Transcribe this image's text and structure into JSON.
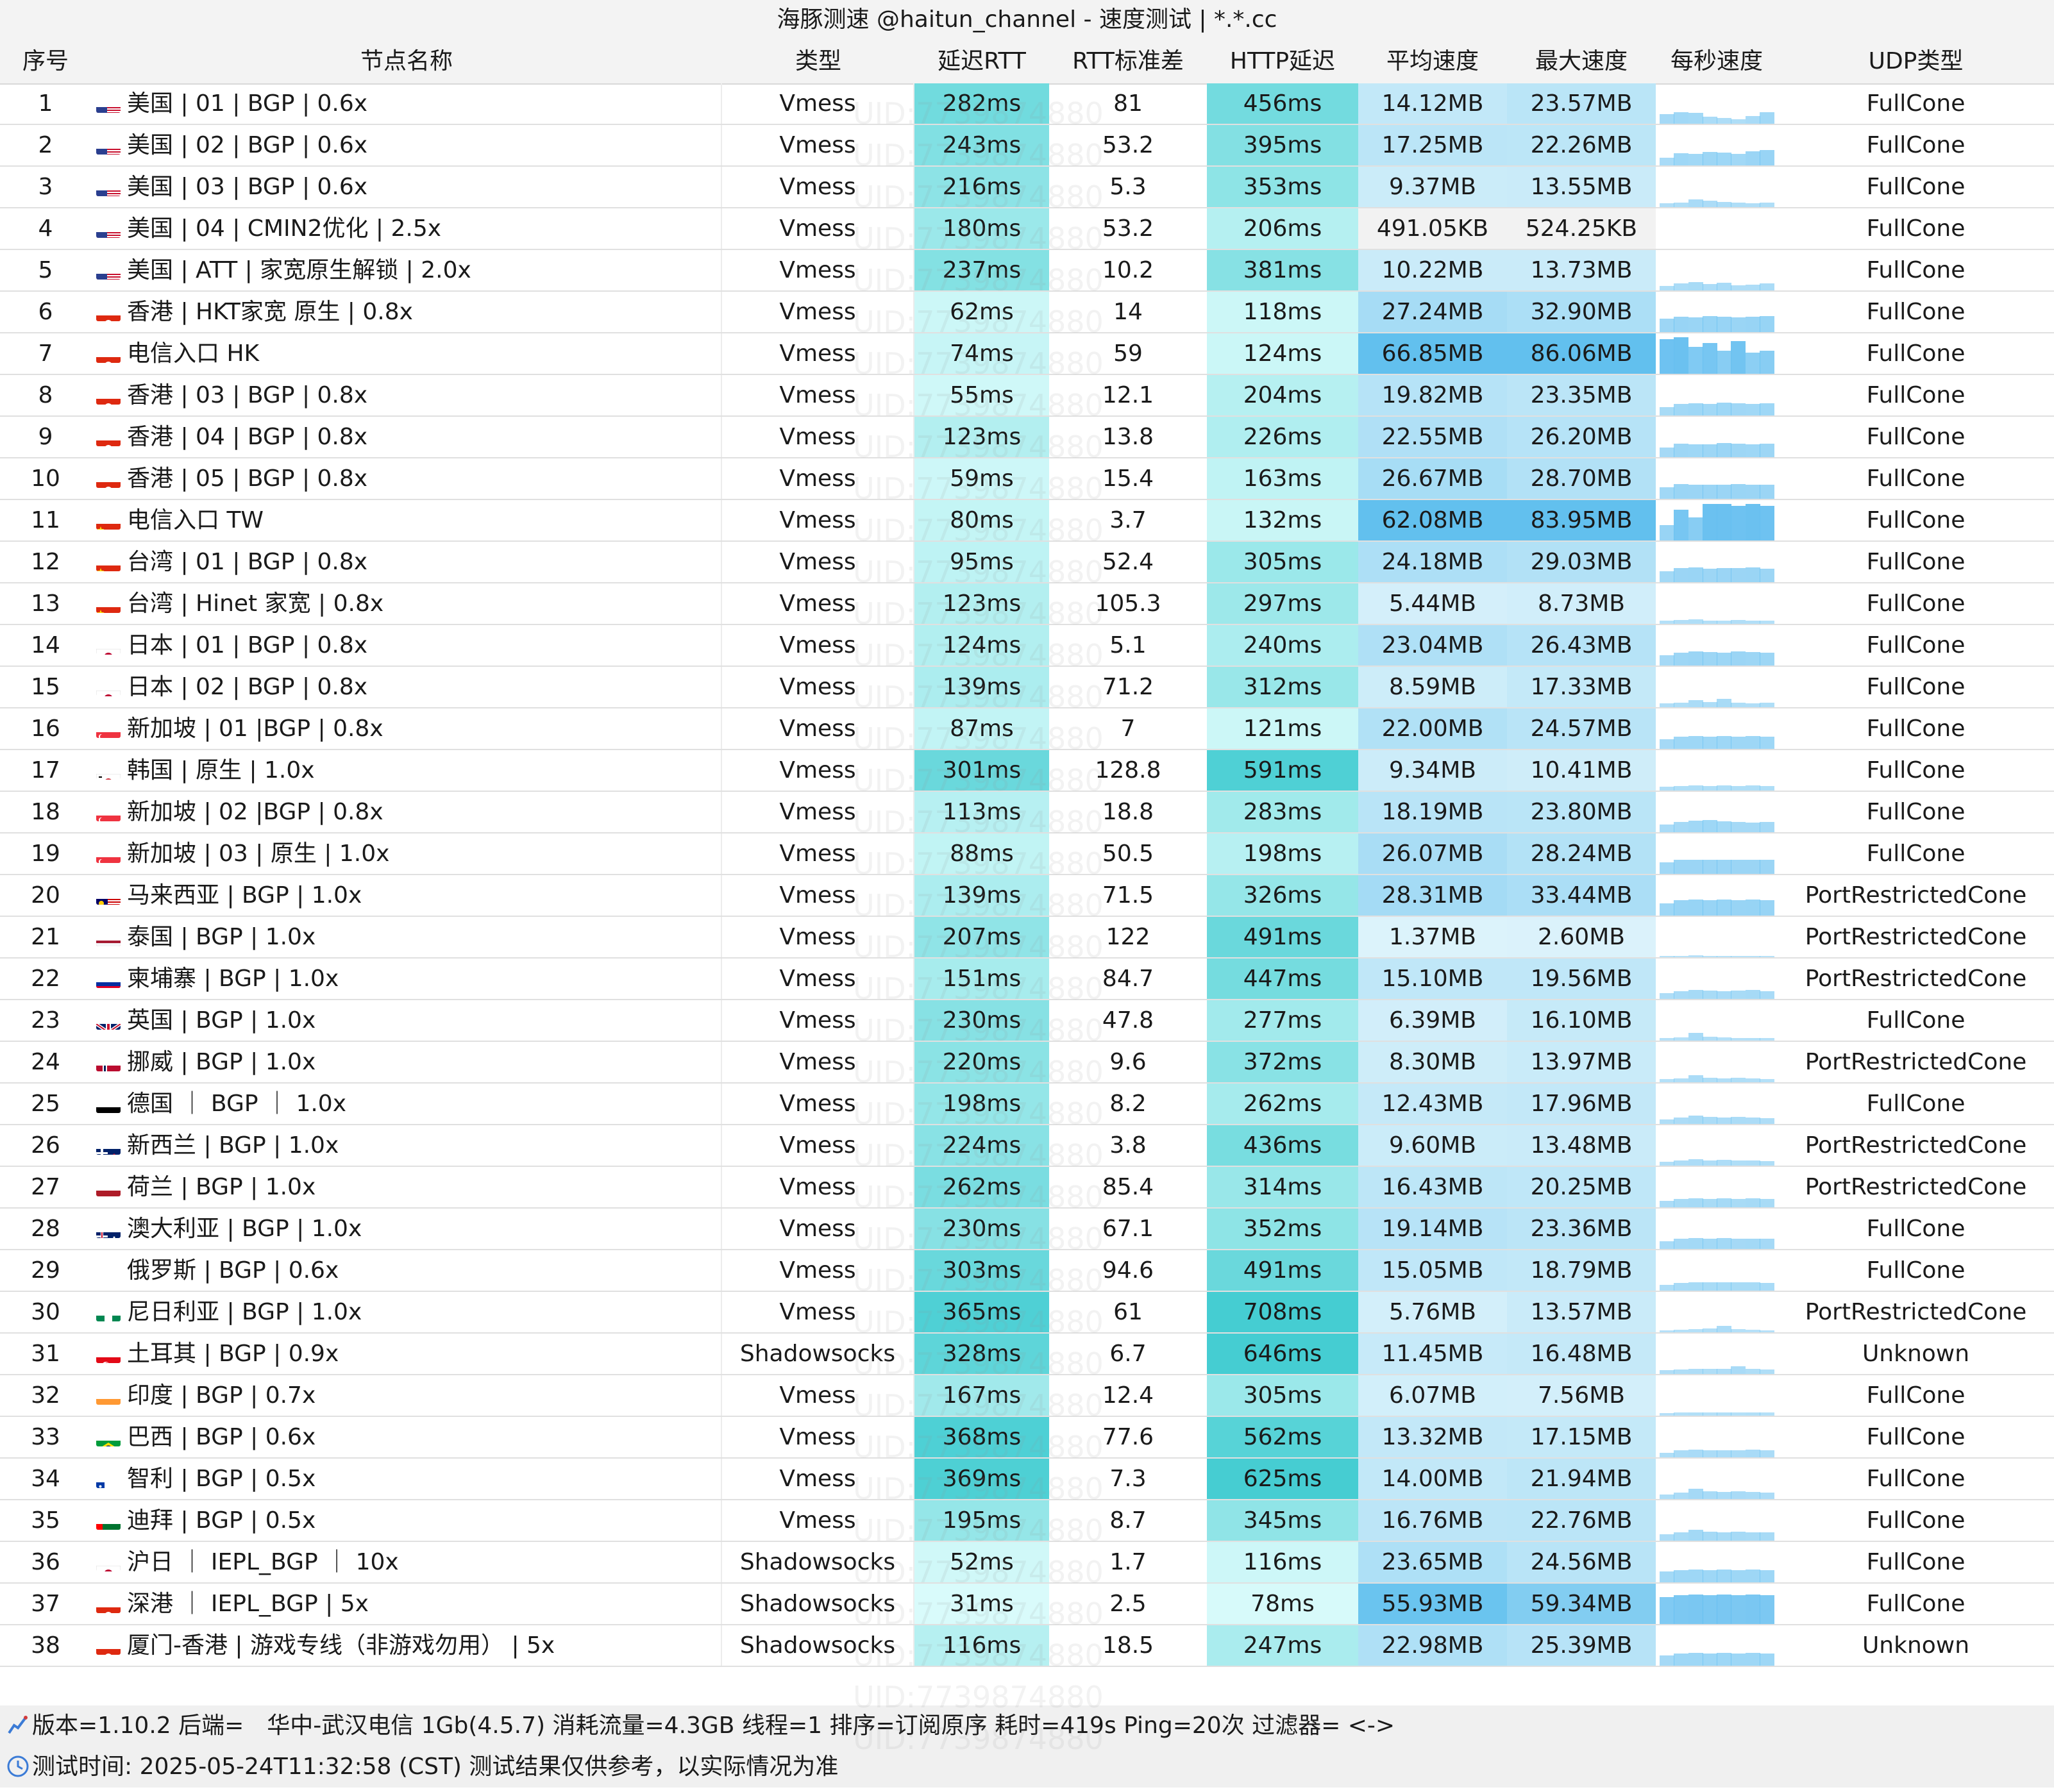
{
  "window": {
    "title": "海豚测速 @haitun_channel - 速度测试 | *.*.cc"
  },
  "columns": [
    "序号",
    "节点名称",
    "类型",
    "延迟RTT",
    "RTT标准差",
    "HTTP延迟",
    "平均速度",
    "最大速度",
    "每秒速度",
    "UDP类型"
  ],
  "rows": [
    {
      "id": "1",
      "flag": "us",
      "name": "美国 | 01 | BGP | 0.6x",
      "type": "Vmess",
      "rtt": "282ms",
      "rtt_ms": 282,
      "std": "81",
      "http": "456ms",
      "http_ms": 456,
      "avg": "14.12MB",
      "avg_mb": 14.12,
      "max": "23.57MB",
      "max_mb": 23.57,
      "spark": [
        0.25,
        0.3,
        0.28,
        0.18,
        0.15,
        0.12,
        0.2,
        0.3
      ],
      "udp": "FullCone"
    },
    {
      "id": "2",
      "flag": "us",
      "name": "美国 | 02 | BGP | 0.6x",
      "type": "Vmess",
      "rtt": "243ms",
      "rtt_ms": 243,
      "std": "53.2",
      "http": "395ms",
      "http_ms": 395,
      "avg": "17.25MB",
      "avg_mb": 17.25,
      "max": "22.26MB",
      "max_mb": 22.26,
      "spark": [
        0.2,
        0.32,
        0.3,
        0.35,
        0.33,
        0.3,
        0.36,
        0.4
      ],
      "udp": "FullCone"
    },
    {
      "id": "3",
      "flag": "us",
      "name": "美国 | 03 | BGP | 0.6x",
      "type": "Vmess",
      "rtt": "216ms",
      "rtt_ms": 216,
      "std": "5.3",
      "http": "353ms",
      "http_ms": 353,
      "avg": "9.37MB",
      "avg_mb": 9.37,
      "max": "13.55MB",
      "max_mb": 13.55,
      "spark": [
        0.1,
        0.12,
        0.2,
        0.16,
        0.14,
        0.12,
        0.1,
        0.12
      ],
      "udp": "FullCone"
    },
    {
      "id": "4",
      "flag": "us",
      "name": "美国 | 04 | CMIN2优化 | 2.5x",
      "type": "Vmess",
      "rtt": "180ms",
      "rtt_ms": 180,
      "std": "53.2",
      "http": "206ms",
      "http_ms": 206,
      "avg": "491.05KB",
      "avg_mb": 0.49,
      "max": "524.25KB",
      "max_mb": 0.52,
      "spark": [
        0.0,
        0.0,
        0.0,
        0.0,
        0.0,
        0.0,
        0.0,
        0.0
      ],
      "udp": "FullCone"
    },
    {
      "id": "5",
      "flag": "us",
      "name": "美国 | ATT | 家宽原生解锁 | 2.0x",
      "type": "Vmess",
      "rtt": "237ms",
      "rtt_ms": 237,
      "std": "10.2",
      "http": "381ms",
      "http_ms": 381,
      "avg": "10.22MB",
      "avg_mb": 10.22,
      "max": "13.73MB",
      "max_mb": 13.73,
      "spark": [
        0.12,
        0.18,
        0.22,
        0.16,
        0.2,
        0.14,
        0.15,
        0.18
      ],
      "udp": "FullCone"
    },
    {
      "id": "6",
      "flag": "hk",
      "name": "香港 | HKT家宽 原生 | 0.8x",
      "type": "Vmess",
      "rtt": "62ms",
      "rtt_ms": 62,
      "std": "14",
      "http": "118ms",
      "http_ms": 118,
      "avg": "27.24MB",
      "avg_mb": 27.24,
      "max": "32.90MB",
      "max_mb": 32.9,
      "spark": [
        0.35,
        0.4,
        0.38,
        0.42,
        0.4,
        0.38,
        0.4,
        0.42
      ],
      "udp": "FullCone"
    },
    {
      "id": "7",
      "flag": "hk",
      "name": "电信入口 HK",
      "type": "Vmess",
      "rtt": "74ms",
      "rtt_ms": 74,
      "std": "59",
      "http": "124ms",
      "http_ms": 124,
      "avg": "66.85MB",
      "avg_mb": 66.85,
      "max": "86.06MB",
      "max_mb": 86.06,
      "spark": [
        0.9,
        0.95,
        0.7,
        0.8,
        0.6,
        0.85,
        0.55,
        0.6
      ],
      "udp": "FullCone"
    },
    {
      "id": "8",
      "flag": "hk",
      "name": "香港 | 03 | BGP | 0.8x",
      "type": "Vmess",
      "rtt": "55ms",
      "rtt_ms": 55,
      "std": "12.1",
      "http": "204ms",
      "http_ms": 204,
      "avg": "19.82MB",
      "avg_mb": 19.82,
      "max": "23.35MB",
      "max_mb": 23.35,
      "spark": [
        0.22,
        0.3,
        0.32,
        0.3,
        0.33,
        0.31,
        0.3,
        0.32
      ],
      "udp": "FullCone"
    },
    {
      "id": "9",
      "flag": "hk",
      "name": "香港 | 04 | BGP | 0.8x",
      "type": "Vmess",
      "rtt": "123ms",
      "rtt_ms": 123,
      "std": "13.8",
      "http": "226ms",
      "http_ms": 226,
      "avg": "22.55MB",
      "avg_mb": 22.55,
      "max": "26.20MB",
      "max_mb": 26.2,
      "spark": [
        0.25,
        0.35,
        0.33,
        0.34,
        0.36,
        0.35,
        0.33,
        0.35
      ],
      "udp": "FullCone"
    },
    {
      "id": "10",
      "flag": "hk",
      "name": "香港 | 05 | BGP | 0.8x",
      "type": "Vmess",
      "rtt": "59ms",
      "rtt_ms": 59,
      "std": "15.4",
      "http": "163ms",
      "http_ms": 163,
      "avg": "26.67MB",
      "avg_mb": 26.67,
      "max": "28.70MB",
      "max_mb": 28.7,
      "spark": [
        0.3,
        0.38,
        0.36,
        0.37,
        0.36,
        0.38,
        0.37,
        0.36
      ],
      "udp": "FullCone"
    },
    {
      "id": "11",
      "flag": "cn",
      "name": "电信入口 TW",
      "type": "Vmess",
      "rtt": "80ms",
      "rtt_ms": 80,
      "std": "3.7",
      "http": "132ms",
      "http_ms": 132,
      "avg": "62.08MB",
      "avg_mb": 62.08,
      "max": "83.95MB",
      "max_mb": 83.95,
      "spark": [
        0.4,
        0.8,
        0.6,
        0.95,
        0.95,
        0.9,
        0.95,
        0.9
      ],
      "udp": "FullCone"
    },
    {
      "id": "12",
      "flag": "cn",
      "name": "台湾 | 01 | BGP | 0.8x",
      "type": "Vmess",
      "rtt": "95ms",
      "rtt_ms": 95,
      "std": "52.4",
      "http": "305ms",
      "http_ms": 305,
      "avg": "24.18MB",
      "avg_mb": 24.18,
      "max": "29.03MB",
      "max_mb": 29.03,
      "spark": [
        0.28,
        0.36,
        0.38,
        0.35,
        0.37,
        0.36,
        0.38,
        0.35
      ],
      "udp": "FullCone"
    },
    {
      "id": "13",
      "flag": "cn",
      "name": "台湾 | Hinet 家宽 | 0.8x",
      "type": "Vmess",
      "rtt": "123ms",
      "rtt_ms": 123,
      "std": "105.3",
      "http": "297ms",
      "http_ms": 297,
      "avg": "5.44MB",
      "avg_mb": 5.44,
      "max": "8.73MB",
      "max_mb": 8.73,
      "spark": [
        0.08,
        0.1,
        0.12,
        0.09,
        0.08,
        0.1,
        0.09,
        0.08
      ],
      "udp": "FullCone"
    },
    {
      "id": "14",
      "flag": "jp",
      "name": "日本 | 01 | BGP | 0.8x",
      "type": "Vmess",
      "rtt": "124ms",
      "rtt_ms": 124,
      "std": "5.1",
      "http": "240ms",
      "http_ms": 240,
      "avg": "23.04MB",
      "avg_mb": 23.04,
      "max": "26.43MB",
      "max_mb": 26.43,
      "spark": [
        0.26,
        0.34,
        0.36,
        0.35,
        0.34,
        0.36,
        0.35,
        0.34
      ],
      "udp": "FullCone"
    },
    {
      "id": "15",
      "flag": "jp",
      "name": "日本 | 02 | BGP | 0.8x",
      "type": "Vmess",
      "rtt": "139ms",
      "rtt_ms": 139,
      "std": "71.2",
      "http": "312ms",
      "http_ms": 312,
      "avg": "8.59MB",
      "avg_mb": 8.59,
      "max": "17.33MB",
      "max_mb": 17.33,
      "spark": [
        0.1,
        0.12,
        0.18,
        0.14,
        0.22,
        0.12,
        0.1,
        0.12
      ],
      "udp": "FullCone"
    },
    {
      "id": "16",
      "flag": "sg",
      "name": "新加坡 | 01 |BGP | 0.8x",
      "type": "Vmess",
      "rtt": "87ms",
      "rtt_ms": 87,
      "std": "7",
      "http": "121ms",
      "http_ms": 121,
      "avg": "22.00MB",
      "avg_mb": 22.0,
      "max": "24.57MB",
      "max_mb": 24.57,
      "spark": [
        0.25,
        0.32,
        0.33,
        0.32,
        0.33,
        0.32,
        0.33,
        0.32
      ],
      "udp": "FullCone"
    },
    {
      "id": "17",
      "flag": "kr",
      "name": "韩国 | 原生 | 1.0x",
      "type": "Vmess",
      "rtt": "301ms",
      "rtt_ms": 301,
      "std": "128.8",
      "http": "591ms",
      "http_ms": 591,
      "avg": "9.34MB",
      "avg_mb": 9.34,
      "max": "10.41MB",
      "max_mb": 10.41,
      "spark": [
        0.1,
        0.12,
        0.13,
        0.12,
        0.13,
        0.12,
        0.13,
        0.12
      ],
      "udp": "FullCone"
    },
    {
      "id": "18",
      "flag": "sg",
      "name": "新加坡 | 02 |BGP | 0.8x",
      "type": "Vmess",
      "rtt": "113ms",
      "rtt_ms": 113,
      "std": "18.8",
      "http": "283ms",
      "http_ms": 283,
      "avg": "18.19MB",
      "avg_mb": 18.19,
      "max": "23.80MB",
      "max_mb": 23.8,
      "spark": [
        0.2,
        0.26,
        0.3,
        0.32,
        0.28,
        0.26,
        0.25,
        0.26
      ],
      "udp": "FullCone"
    },
    {
      "id": "19",
      "flag": "sg",
      "name": "新加坡 | 03 | 原生 | 1.0x",
      "type": "Vmess",
      "rtt": "88ms",
      "rtt_ms": 88,
      "std": "50.5",
      "http": "198ms",
      "http_ms": 198,
      "avg": "26.07MB",
      "avg_mb": 26.07,
      "max": "28.24MB",
      "max_mb": 28.24,
      "spark": [
        0.3,
        0.36,
        0.37,
        0.36,
        0.37,
        0.36,
        0.37,
        0.36
      ],
      "udp": "FullCone"
    },
    {
      "id": "20",
      "flag": "my",
      "name": "马来西亚 | BGP | 1.0x",
      "type": "Vmess",
      "rtt": "139ms",
      "rtt_ms": 139,
      "std": "71.5",
      "http": "326ms",
      "http_ms": 326,
      "avg": "28.31MB",
      "avg_mb": 28.31,
      "max": "33.44MB",
      "max_mb": 33.44,
      "spark": [
        0.32,
        0.4,
        0.42,
        0.4,
        0.41,
        0.4,
        0.42,
        0.4
      ],
      "udp": "PortRestrictedCone"
    },
    {
      "id": "21",
      "flag": "th",
      "name": "泰国 | BGP | 1.0x",
      "type": "Vmess",
      "rtt": "207ms",
      "rtt_ms": 207,
      "std": "122",
      "http": "491ms",
      "http_ms": 491,
      "avg": "1.37MB",
      "avg_mb": 1.37,
      "max": "2.60MB",
      "max_mb": 2.6,
      "spark": [
        0.03,
        0.04,
        0.05,
        0.04,
        0.03,
        0.04,
        0.03,
        0.03
      ],
      "udp": "PortRestrictedCone"
    },
    {
      "id": "22",
      "flag": "kh",
      "name": "柬埔寨 | BGP | 1.0x",
      "type": "Vmess",
      "rtt": "151ms",
      "rtt_ms": 151,
      "std": "84.7",
      "http": "447ms",
      "http_ms": 447,
      "avg": "15.10MB",
      "avg_mb": 15.1,
      "max": "19.56MB",
      "max_mb": 19.56,
      "spark": [
        0.15,
        0.2,
        0.24,
        0.22,
        0.2,
        0.22,
        0.24,
        0.2
      ],
      "udp": "PortRestrictedCone"
    },
    {
      "id": "23",
      "flag": "gb",
      "name": "英国 | BGP | 1.0x",
      "type": "Vmess",
      "rtt": "230ms",
      "rtt_ms": 230,
      "std": "47.8",
      "http": "277ms",
      "http_ms": 277,
      "avg": "6.39MB",
      "avg_mb": 6.39,
      "max": "16.10MB",
      "max_mb": 16.1,
      "spark": [
        0.06,
        0.08,
        0.2,
        0.1,
        0.08,
        0.06,
        0.07,
        0.06
      ],
      "udp": "FullCone"
    },
    {
      "id": "24",
      "flag": "no",
      "name": "挪威 | BGP | 1.0x",
      "type": "Vmess",
      "rtt": "220ms",
      "rtt_ms": 220,
      "std": "9.6",
      "http": "372ms",
      "http_ms": 372,
      "avg": "8.30MB",
      "avg_mb": 8.3,
      "max": "13.97MB",
      "max_mb": 13.97,
      "spark": [
        0.08,
        0.1,
        0.18,
        0.12,
        0.1,
        0.12,
        0.1,
        0.08
      ],
      "udp": "PortRestrictedCone"
    },
    {
      "id": "25",
      "flag": "de",
      "name": "德国 ｜ BGP ｜ 1.0x",
      "type": "Vmess",
      "rtt": "198ms",
      "rtt_ms": 198,
      "std": "8.2",
      "http": "262ms",
      "http_ms": 262,
      "avg": "12.43MB",
      "avg_mb": 12.43,
      "max": "17.96MB",
      "max_mb": 17.96,
      "spark": [
        0.12,
        0.16,
        0.22,
        0.18,
        0.16,
        0.18,
        0.16,
        0.15
      ],
      "udp": "FullCone"
    },
    {
      "id": "26",
      "flag": "nz",
      "name": "新西兰 | BGP | 1.0x",
      "type": "Vmess",
      "rtt": "224ms",
      "rtt_ms": 224,
      "std": "3.8",
      "http": "436ms",
      "http_ms": 436,
      "avg": "9.60MB",
      "avg_mb": 9.6,
      "max": "13.48MB",
      "max_mb": 13.48,
      "spark": [
        0.1,
        0.14,
        0.16,
        0.14,
        0.15,
        0.13,
        0.14,
        0.12
      ],
      "udp": "PortRestrictedCone"
    },
    {
      "id": "27",
      "flag": "nl",
      "name": "荷兰 | BGP | 1.0x",
      "type": "Vmess",
      "rtt": "262ms",
      "rtt_ms": 262,
      "std": "85.4",
      "http": "314ms",
      "http_ms": 314,
      "avg": "16.43MB",
      "avg_mb": 16.43,
      "max": "20.25MB",
      "max_mb": 20.25,
      "spark": [
        0.16,
        0.22,
        0.24,
        0.22,
        0.23,
        0.22,
        0.24,
        0.22
      ],
      "udp": "PortRestrictedCone"
    },
    {
      "id": "28",
      "flag": "au",
      "name": "澳大利亚 | BGP | 1.0x",
      "type": "Vmess",
      "rtt": "230ms",
      "rtt_ms": 230,
      "std": "67.1",
      "http": "352ms",
      "http_ms": 352,
      "avg": "19.14MB",
      "avg_mb": 19.14,
      "max": "23.36MB",
      "max_mb": 23.36,
      "spark": [
        0.2,
        0.26,
        0.28,
        0.27,
        0.28,
        0.26,
        0.27,
        0.26
      ],
      "udp": "FullCone"
    },
    {
      "id": "29",
      "flag": "ru",
      "name": "俄罗斯 | BGP | 0.6x",
      "type": "Vmess",
      "rtt": "303ms",
      "rtt_ms": 303,
      "std": "94.6",
      "http": "491ms",
      "http_ms": 491,
      "avg": "15.05MB",
      "avg_mb": 15.05,
      "max": "18.79MB",
      "max_mb": 18.79,
      "spark": [
        0.15,
        0.2,
        0.22,
        0.21,
        0.22,
        0.21,
        0.22,
        0.2
      ],
      "udp": "FullCone"
    },
    {
      "id": "30",
      "flag": "ng",
      "name": "尼日利亚 | BGP | 1.0x",
      "type": "Vmess",
      "rtt": "365ms",
      "rtt_ms": 365,
      "std": "61",
      "http": "708ms",
      "http_ms": 708,
      "avg": "5.76MB",
      "avg_mb": 5.76,
      "max": "13.57MB",
      "max_mb": 13.57,
      "spark": [
        0.05,
        0.07,
        0.08,
        0.1,
        0.16,
        0.08,
        0.06,
        0.05
      ],
      "udp": "PortRestrictedCone"
    },
    {
      "id": "31",
      "flag": "tr",
      "name": "土耳其 | BGP | 0.9x",
      "type": "Shadowsocks",
      "rtt": "328ms",
      "rtt_ms": 328,
      "std": "6.7",
      "http": "646ms",
      "http_ms": 646,
      "avg": "11.45MB",
      "avg_mb": 11.45,
      "max": "16.48MB",
      "max_mb": 16.48,
      "spark": [
        0.1,
        0.12,
        0.14,
        0.13,
        0.14,
        0.2,
        0.13,
        0.12
      ],
      "udp": "Unknown"
    },
    {
      "id": "32",
      "flag": "in",
      "name": "印度 | BGP | 0.7x",
      "type": "Vmess",
      "rtt": "167ms",
      "rtt_ms": 167,
      "std": "12.4",
      "http": "305ms",
      "http_ms": 305,
      "avg": "6.07MB",
      "avg_mb": 6.07,
      "max": "7.56MB",
      "max_mb": 7.56,
      "spark": [
        0.06,
        0.08,
        0.09,
        0.08,
        0.09,
        0.08,
        0.09,
        0.08
      ],
      "udp": "FullCone"
    },
    {
      "id": "33",
      "flag": "br",
      "name": "巴西 | BGP | 0.6x",
      "type": "Vmess",
      "rtt": "368ms",
      "rtt_ms": 368,
      "std": "77.6",
      "http": "562ms",
      "http_ms": 562,
      "avg": "13.32MB",
      "avg_mb": 13.32,
      "max": "17.15MB",
      "max_mb": 17.15,
      "spark": [
        0.12,
        0.18,
        0.2,
        0.18,
        0.19,
        0.18,
        0.2,
        0.18
      ],
      "udp": "FullCone"
    },
    {
      "id": "34",
      "flag": "cl",
      "name": "智利 | BGP | 0.5x",
      "type": "Vmess",
      "rtt": "369ms",
      "rtt_ms": 369,
      "std": "7.3",
      "http": "625ms",
      "http_ms": 625,
      "avg": "14.00MB",
      "avg_mb": 14.0,
      "max": "21.94MB",
      "max_mb": 21.94,
      "spark": [
        0.12,
        0.16,
        0.26,
        0.2,
        0.18,
        0.2,
        0.18,
        0.16
      ],
      "udp": "FullCone"
    },
    {
      "id": "35",
      "flag": "ae",
      "name": "迪拜 | BGP | 0.5x",
      "type": "Vmess",
      "rtt": "195ms",
      "rtt_ms": 195,
      "std": "8.7",
      "http": "345ms",
      "http_ms": 345,
      "avg": "16.76MB",
      "avg_mb": 16.76,
      "max": "22.76MB",
      "max_mb": 22.76,
      "spark": [
        0.16,
        0.22,
        0.28,
        0.24,
        0.22,
        0.24,
        0.22,
        0.22
      ],
      "udp": "FullCone"
    },
    {
      "id": "36",
      "flag": "jp",
      "name": "沪日 ｜ IEPL_BGP ｜ 10x",
      "type": "Shadowsocks",
      "rtt": "52ms",
      "rtt_ms": 52,
      "std": "1.7",
      "http": "116ms",
      "http_ms": 116,
      "avg": "23.65MB",
      "avg_mb": 23.65,
      "max": "24.56MB",
      "max_mb": 24.56,
      "spark": [
        0.28,
        0.32,
        0.33,
        0.32,
        0.33,
        0.32,
        0.33,
        0.32
      ],
      "udp": "FullCone"
    },
    {
      "id": "37",
      "flag": "hk",
      "name": "深港 ｜ IEPL_BGP | 5x",
      "type": "Shadowsocks",
      "rtt": "31ms",
      "rtt_ms": 31,
      "std": "2.5",
      "http": "78ms",
      "http_ms": 78,
      "avg": "55.93MB",
      "avg_mb": 55.93,
      "max": "59.34MB",
      "max_mb": 59.34,
      "spark": [
        0.7,
        0.75,
        0.76,
        0.75,
        0.76,
        0.75,
        0.76,
        0.75
      ],
      "udp": "FullCone"
    },
    {
      "id": "38",
      "flag": "hk",
      "name": "厦门-香港 | 游戏专线（非游戏勿用） | 5x",
      "type": "Shadowsocks",
      "rtt": "116ms",
      "rtt_ms": 116,
      "std": "18.5",
      "http": "247ms",
      "http_ms": 247,
      "avg": "22.98MB",
      "avg_mb": 22.98,
      "max": "25.39MB",
      "max_mb": 25.39,
      "spark": [
        0.26,
        0.32,
        0.33,
        0.32,
        0.33,
        0.32,
        0.33,
        0.32
      ],
      "udp": "Unknown"
    }
  ],
  "footer": {
    "line1": "版本=1.10.2  后端= 华中-武汉电信 1Gb(4.5.7) 消耗流量=4.3GB  线程=1  排序=订阅原序  耗时=419s  Ping=20次  过滤器= <->",
    "line2": "测试时间: 2025-05-24T11:32:58 (CST)  测试结果仅供参考，以实际情况为准"
  },
  "watermark": "UID:7739874880",
  "colors": {
    "cyan_dark": "#45cdd2",
    "cyan_light": "#d9fbfb",
    "blue_dark": "#62c0ee",
    "blue_light": "#dff4fb",
    "spark": "#66bff0",
    "header_bg": "#f3f3f3"
  }
}
